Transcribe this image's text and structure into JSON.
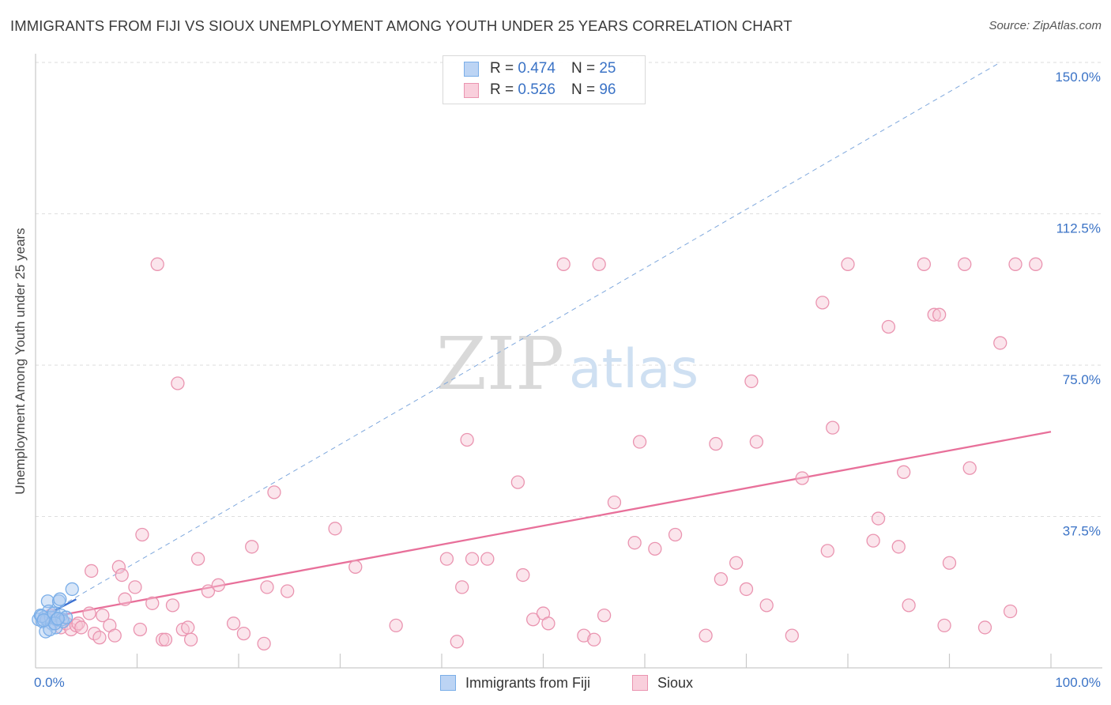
{
  "title": "IMMIGRANTS FROM FIJI VS SIOUX UNEMPLOYMENT AMONG YOUTH UNDER 25 YEARS CORRELATION CHART",
  "source": "Source: ZipAtlas.com",
  "watermark": {
    "zip": "ZIP",
    "atlas": "atlas"
  },
  "chart_data": {
    "type": "scatter",
    "xlabel": "",
    "ylabel": "Unemployment Among Youth under 25 years",
    "xlim": [
      0,
      100
    ],
    "ylim": [
      0,
      150
    ],
    "x_tick_labels": [
      {
        "value": 0,
        "label": "0.0%"
      },
      {
        "value": 100,
        "label": "100.0%"
      }
    ],
    "y_tick_labels": [
      {
        "value": 37.5,
        "label": "37.5%"
      },
      {
        "value": 75,
        "label": "75.0%"
      },
      {
        "value": 112.5,
        "label": "112.5%"
      },
      {
        "value": 150,
        "label": "150.0%"
      }
    ],
    "grid": true,
    "legend": {
      "position": "top-center",
      "rows": [
        {
          "r_label": "R =",
          "r_value": "0.474",
          "n_label": "N =",
          "n_value": "25",
          "series": "Immigrants from Fiji"
        },
        {
          "r_label": "R =",
          "r_value": "0.526",
          "n_label": "N =",
          "n_value": "96",
          "series": "Sioux"
        }
      ]
    },
    "series": [
      {
        "name": "Immigrants from Fiji",
        "color": "#7aaee8",
        "fill": "#a8c8f0",
        "trend": {
          "x": [
            0.2,
            4.0
          ],
          "y": [
            12.0,
            17.0
          ],
          "color": "#3a6fd0",
          "style": "solid"
        },
        "trend_extended": {
          "x": [
            0.2,
            95.0
          ],
          "y": [
            12.0,
            150.0
          ],
          "color": "#7fa8dd",
          "style": "dashed"
        },
        "points": [
          [
            0.3,
            12.0
          ],
          [
            0.5,
            13.0
          ],
          [
            0.7,
            11.5
          ],
          [
            0.9,
            12.5
          ],
          [
            1.1,
            12.0
          ],
          [
            1.2,
            16.5
          ],
          [
            1.3,
            14.0
          ],
          [
            1.5,
            12.5
          ],
          [
            1.6,
            11.0
          ],
          [
            1.8,
            13.5
          ],
          [
            2.0,
            10.0
          ],
          [
            2.1,
            12.0
          ],
          [
            2.3,
            16.5
          ],
          [
            2.4,
            17.0
          ],
          [
            2.5,
            13.0
          ],
          [
            2.6,
            12.0
          ],
          [
            2.7,
            11.5
          ],
          [
            3.0,
            12.5
          ],
          [
            1.0,
            9.0
          ],
          [
            1.4,
            9.5
          ],
          [
            1.9,
            11.0
          ],
          [
            0.6,
            12.8
          ],
          [
            0.8,
            11.8
          ],
          [
            2.2,
            12.2
          ],
          [
            3.6,
            19.5
          ]
        ]
      },
      {
        "name": "Sioux",
        "color": "#ea94b0",
        "fill": "#f7c5d5",
        "trend": {
          "x": [
            0.2,
            100.0
          ],
          "y": [
            12.0,
            58.5
          ],
          "color": "#e8709a",
          "style": "solid"
        },
        "points": [
          [
            1.5,
            13.0
          ],
          [
            2.0,
            12.0
          ],
          [
            2.5,
            10.0
          ],
          [
            3.0,
            11.0
          ],
          [
            3.5,
            9.5
          ],
          [
            4.0,
            10.5
          ],
          [
            4.2,
            11.0
          ],
          [
            4.5,
            10.0
          ],
          [
            5.3,
            13.5
          ],
          [
            5.5,
            24.0
          ],
          [
            5.8,
            8.5
          ],
          [
            6.3,
            7.5
          ],
          [
            6.6,
            13.0
          ],
          [
            7.3,
            10.5
          ],
          [
            7.8,
            8.0
          ],
          [
            8.2,
            25.0
          ],
          [
            8.5,
            23.0
          ],
          [
            8.8,
            17.0
          ],
          [
            9.8,
            20.0
          ],
          [
            10.3,
            9.5
          ],
          [
            10.5,
            33.0
          ],
          [
            11.5,
            16.0
          ],
          [
            12.0,
            100.0
          ],
          [
            12.5,
            7.0
          ],
          [
            12.8,
            7.0
          ],
          [
            13.5,
            15.5
          ],
          [
            14.0,
            70.5
          ],
          [
            14.5,
            9.5
          ],
          [
            15.0,
            10.0
          ],
          [
            15.3,
            7.0
          ],
          [
            16.0,
            27.0
          ],
          [
            17.0,
            19.0
          ],
          [
            18.0,
            20.5
          ],
          [
            19.5,
            11.0
          ],
          [
            20.5,
            8.5
          ],
          [
            21.3,
            30.0
          ],
          [
            22.5,
            6.0
          ],
          [
            22.8,
            20.0
          ],
          [
            23.5,
            43.5
          ],
          [
            24.8,
            19.0
          ],
          [
            29.5,
            34.5
          ],
          [
            31.5,
            25.0
          ],
          [
            35.5,
            10.5
          ],
          [
            40.5,
            27.0
          ],
          [
            41.5,
            6.5
          ],
          [
            42.0,
            20.0
          ],
          [
            42.5,
            56.5
          ],
          [
            43.0,
            27.0
          ],
          [
            44.5,
            27.0
          ],
          [
            47.5,
            46.0
          ],
          [
            48.0,
            23.0
          ],
          [
            49.0,
            12.0
          ],
          [
            50.0,
            13.5
          ],
          [
            50.5,
            11.0
          ],
          [
            52.0,
            100.0
          ],
          [
            54.0,
            8.0
          ],
          [
            55.0,
            7.0
          ],
          [
            55.5,
            100.0
          ],
          [
            56.0,
            13.0
          ],
          [
            57.0,
            41.0
          ],
          [
            59.0,
            31.0
          ],
          [
            59.5,
            56.0
          ],
          [
            63.0,
            33.0
          ],
          [
            66.0,
            8.0
          ],
          [
            67.0,
            55.5
          ],
          [
            67.5,
            22.0
          ],
          [
            69.0,
            26.0
          ],
          [
            70.0,
            19.5
          ],
          [
            70.5,
            71.0
          ],
          [
            71.0,
            56.0
          ],
          [
            72.0,
            15.5
          ],
          [
            74.5,
            8.0
          ],
          [
            75.5,
            47.0
          ],
          [
            77.5,
            90.5
          ],
          [
            78.0,
            29.0
          ],
          [
            78.5,
            59.5
          ],
          [
            80.0,
            100.0
          ],
          [
            82.5,
            31.5
          ],
          [
            83.0,
            37.0
          ],
          [
            84.0,
            84.5
          ],
          [
            85.0,
            30.0
          ],
          [
            85.5,
            48.5
          ],
          [
            86.0,
            15.5
          ],
          [
            87.5,
            100.0
          ],
          [
            88.5,
            87.5
          ],
          [
            89.0,
            87.5
          ],
          [
            89.5,
            10.5
          ],
          [
            90.0,
            26.0
          ],
          [
            91.5,
            100.0
          ],
          [
            92.0,
            49.5
          ],
          [
            93.5,
            10.0
          ],
          [
            95.0,
            80.5
          ],
          [
            96.5,
            100.0
          ],
          [
            98.5,
            100.0
          ],
          [
            96.0,
            14.0
          ],
          [
            61.0,
            29.5
          ]
        ]
      }
    ]
  }
}
